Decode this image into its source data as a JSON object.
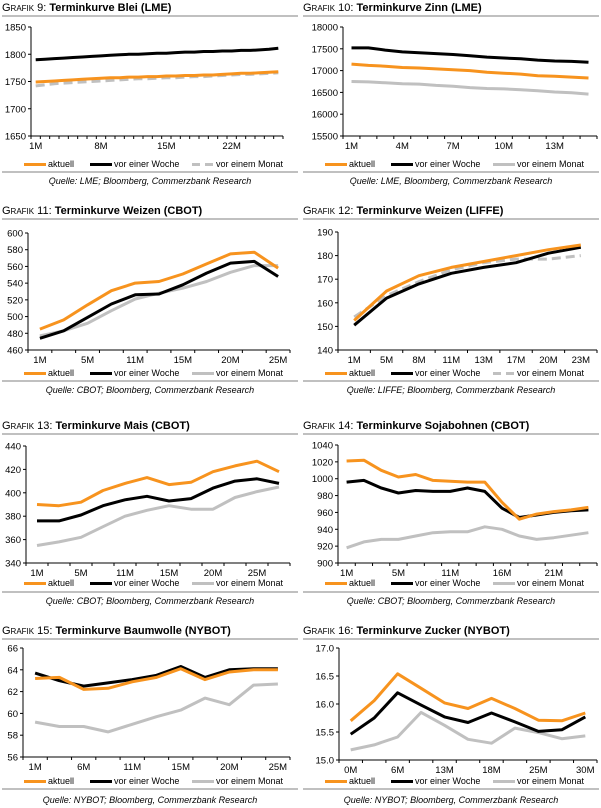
{
  "colors": {
    "aktuell": "#f7931e",
    "woche": "#000000",
    "monat": "#c0c0c0",
    "rule": "#c0c0c0"
  },
  "legend": {
    "aktuell": "aktuell",
    "woche": "vor einer Woche",
    "monat": "vor einem Monat"
  },
  "chart_data": [
    {
      "id": "g9",
      "type": "line",
      "prefix": "Grafik 9:",
      "title": "Terminkurve Blei (LME)",
      "source": "Quelle: LME; Bloomberg, Commerzbank Research",
      "ylim": [
        1650,
        1850
      ],
      "yticks": [
        "1650",
        "1700",
        "1750",
        "1800",
        "1850"
      ],
      "yticks_values": [
        1650,
        1700,
        1750,
        1800,
        1850
      ],
      "n_points": 27,
      "xtick_labels": [
        "1M",
        "8M",
        "15M",
        "22M"
      ],
      "xtick_index": [
        0,
        7,
        14,
        21
      ],
      "n_ticks": 27,
      "monat_dashed": true,
      "series": [
        {
          "key": "aktuell",
          "name": "aktuell",
          "values": [
            1749,
            1750,
            1751,
            1752,
            1753,
            1754,
            1755,
            1756,
            1757,
            1757,
            1758,
            1758,
            1759,
            1759,
            1760,
            1760,
            1761,
            1761,
            1762,
            1762,
            1763,
            1764,
            1765,
            1765,
            1766,
            1767,
            1768
          ]
        },
        {
          "key": "woche",
          "name": "vor einer Woche",
          "values": [
            1790,
            1791,
            1792,
            1793,
            1794,
            1795,
            1796,
            1797,
            1798,
            1799,
            1800,
            1800,
            1801,
            1802,
            1802,
            1803,
            1804,
            1804,
            1805,
            1805,
            1806,
            1806,
            1807,
            1807,
            1808,
            1809,
            1811
          ]
        },
        {
          "key": "monat",
          "name": "vor einem Monat",
          "values": [
            1742,
            1744,
            1746,
            1747,
            1748,
            1749,
            1750,
            1751,
            1752,
            1753,
            1754,
            1755,
            1755,
            1756,
            1757,
            1757,
            1758,
            1759,
            1759,
            1760,
            1761,
            1762,
            1763,
            1763,
            1764,
            1765,
            1766
          ]
        }
      ]
    },
    {
      "id": "g10",
      "type": "line",
      "prefix": "Grafik 10:",
      "title": "Terminkurve Zinn (LME)",
      "source": "Quelle: LME, Bloomberg, Commerzbank Research",
      "ylim": [
        15500,
        18000
      ],
      "yticks": [
        "15500",
        "16000",
        "16500",
        "17000",
        "17500",
        "18000"
      ],
      "yticks_values": [
        15500,
        16000,
        16500,
        17000,
        17500,
        18000
      ],
      "n_points": 15,
      "xtick_labels": [
        "1M",
        "4M",
        "7M",
        "10M",
        "13M"
      ],
      "xtick_index": [
        0,
        3,
        6,
        9,
        12
      ],
      "n_ticks": 15,
      "monat_dashed": false,
      "series": [
        {
          "key": "aktuell",
          "name": "aktuell",
          "values": [
            17150,
            17120,
            17100,
            17070,
            17060,
            17040,
            17020,
            17000,
            16960,
            16940,
            16920,
            16880,
            16870,
            16850,
            16830
          ]
        },
        {
          "key": "woche",
          "name": "vor einer Woche",
          "values": [
            17520,
            17520,
            17470,
            17430,
            17410,
            17390,
            17370,
            17340,
            17310,
            17290,
            17270,
            17240,
            17220,
            17210,
            17190
          ]
        },
        {
          "key": "monat",
          "name": "vor einem Monat",
          "values": [
            16750,
            16740,
            16720,
            16700,
            16690,
            16660,
            16640,
            16610,
            16590,
            16580,
            16560,
            16540,
            16510,
            16490,
            16460
          ]
        }
      ]
    },
    {
      "id": "g11",
      "type": "line",
      "prefix": "Grafik 11:",
      "title": "Terminkurve Weizen (CBOT)",
      "source": "Quelle: CBOT; Bloomberg, Commerzbank Research",
      "ylim": [
        460,
        600
      ],
      "yticks": [
        "460",
        "480",
        "500",
        "520",
        "540",
        "560",
        "580",
        "600"
      ],
      "yticks_values": [
        460,
        480,
        500,
        520,
        540,
        560,
        580,
        600
      ],
      "n_points": 11,
      "xtick_labels": [
        "1M",
        "5M",
        "11M",
        "15M",
        "20M",
        "25M"
      ],
      "xtick_index": [
        0,
        2,
        4,
        6,
        8,
        10
      ],
      "n_ticks": 11,
      "monat_dashed": false,
      "series": [
        {
          "key": "aktuell",
          "name": "aktuell",
          "values": [
            485,
            496,
            514,
            531,
            540,
            542,
            551,
            563,
            575,
            577,
            558
          ]
        },
        {
          "key": "woche",
          "name": "vor einer Woche",
          "values": [
            474,
            483,
            499,
            515,
            526,
            527,
            538,
            552,
            564,
            566,
            548
          ]
        },
        {
          "key": "monat",
          "name": "vor einem Monat",
          "values": [
            477,
            483,
            492,
            507,
            521,
            528,
            534,
            542,
            553,
            561,
            561
          ]
        }
      ]
    },
    {
      "id": "g12",
      "type": "line",
      "prefix": "Grafik 12:",
      "title": "Terminkurve Weizen (LIFFE)",
      "source": "Quelle: LIFFE; Bloomberg, Commerzbank Research",
      "ylim": [
        140,
        190
      ],
      "yticks": [
        "140",
        "150",
        "160",
        "170",
        "180",
        "190"
      ],
      "yticks_values": [
        140,
        150,
        160,
        170,
        180,
        190
      ],
      "n_points": 8,
      "xtick_labels": [
        "1M",
        "5M",
        "8M",
        "11M",
        "13M",
        "17M",
        "20M",
        "23M"
      ],
      "xtick_index": [
        0,
        1,
        2,
        3,
        4,
        5,
        6,
        7
      ],
      "n_ticks": 8,
      "monat_dashed": true,
      "series": [
        {
          "key": "aktuell",
          "name": "aktuell",
          "values": [
            152.5,
            165,
            171.5,
            175,
            177.5,
            180,
            182.5,
            184.5
          ]
        },
        {
          "key": "woche",
          "name": "vor einer Woche",
          "values": [
            150.5,
            162,
            168,
            172.5,
            175,
            177,
            181,
            183.5
          ]
        },
        {
          "key": "monat",
          "name": "vor einem Monat",
          "values": [
            154,
            163,
            169,
            174,
            177,
            178.5,
            178.5,
            180
          ]
        }
      ]
    },
    {
      "id": "g13",
      "type": "line",
      "prefix": "Grafik 13:",
      "title": "Terminkurve Mais (CBOT)",
      "source": "Quelle: CBOT; Bloomberg, Commerzbank Research",
      "ylim": [
        340,
        440
      ],
      "yticks": [
        "340",
        "360",
        "380",
        "400",
        "420",
        "440"
      ],
      "yticks_values": [
        340,
        360,
        380,
        400,
        420,
        440
      ],
      "n_points": 12,
      "xtick_labels": [
        "1M",
        "5M",
        "11M",
        "15M",
        "20M",
        "25M"
      ],
      "xtick_index": [
        0,
        2,
        4,
        6,
        8,
        10
      ],
      "n_ticks": 12,
      "monat_dashed": false,
      "series": [
        {
          "key": "aktuell",
          "name": "aktuell",
          "values": [
            390,
            389,
            392,
            402,
            408,
            413,
            407,
            409,
            418,
            423,
            427,
            418
          ]
        },
        {
          "key": "woche",
          "name": "vor einer Woche",
          "values": [
            376,
            376,
            381,
            389,
            394,
            397,
            393,
            395,
            404,
            410,
            412,
            408
          ]
        },
        {
          "key": "monat",
          "name": "vor einem Monat",
          "values": [
            355,
            358,
            362,
            371,
            380,
            385,
            389,
            386,
            386,
            396,
            401,
            405
          ]
        }
      ]
    },
    {
      "id": "g14",
      "type": "line",
      "prefix": "Grafik 14:",
      "title": "Terminkurve Sojabohnen (CBOT)",
      "source": "Quelle: CBOT; Bloomberg, Commerzbank Research",
      "ylim": [
        900,
        1040
      ],
      "yticks": [
        "900",
        "920",
        "940",
        "960",
        "980",
        "1000",
        "1020",
        "1040"
      ],
      "yticks_values": [
        900,
        920,
        940,
        960,
        980,
        1000,
        1020,
        1040
      ],
      "n_points": 15,
      "xtick_labels": [
        "1M",
        "5M",
        "11M",
        "16M",
        "21M"
      ],
      "xtick_index": [
        0,
        3,
        6,
        9,
        12
      ],
      "n_ticks": 15,
      "monat_dashed": false,
      "series": [
        {
          "key": "aktuell",
          "name": "aktuell",
          "values": [
            1021,
            1022,
            1010,
            1002,
            1005,
            998,
            997,
            996,
            996,
            972,
            952,
            958,
            961,
            963,
            966
          ]
        },
        {
          "key": "woche",
          "name": "vor einer Woche",
          "values": [
            996,
            998,
            989,
            983,
            986,
            985,
            985,
            989,
            985,
            965,
            954,
            957,
            960,
            962,
            963
          ]
        },
        {
          "key": "monat",
          "name": "vor einem Monat",
          "values": [
            918,
            925,
            928,
            928,
            932,
            936,
            937,
            937,
            943,
            940,
            932,
            928,
            930,
            933,
            936
          ]
        }
      ]
    },
    {
      "id": "g15",
      "type": "line",
      "prefix": "Grafik 15:",
      "title": "Terminkurve Baumwolle (NYBOT)",
      "source": "Quelle: NYBOT; Bloomberg, Commerzbank Research",
      "ylim": [
        56,
        66
      ],
      "yticks": [
        "56",
        "58",
        "60",
        "62",
        "64",
        "66"
      ],
      "yticks_values": [
        56,
        58,
        60,
        62,
        64,
        66
      ],
      "n_points": 11,
      "xtick_labels": [
        "1M",
        "6M",
        "11M",
        "15M",
        "20M",
        "25M"
      ],
      "xtick_index": [
        0,
        2,
        4,
        6,
        8,
        10
      ],
      "n_ticks": 11,
      "monat_dashed": false,
      "series": [
        {
          "key": "aktuell",
          "name": "aktuell",
          "values": [
            63.2,
            63.3,
            62.2,
            62.3,
            62.9,
            63.3,
            64.1,
            63.1,
            63.8,
            64.0,
            64.0
          ]
        },
        {
          "key": "woche",
          "name": "vor einer Woche",
          "values": [
            63.7,
            63.0,
            62.5,
            62.8,
            63.1,
            63.5,
            64.3,
            63.3,
            64.0,
            64.1,
            64.1
          ]
        },
        {
          "key": "monat",
          "name": "vor einem Monat",
          "values": [
            59.2,
            58.8,
            58.8,
            58.3,
            59.0,
            59.7,
            60.3,
            61.4,
            60.8,
            62.6,
            62.7
          ]
        }
      ]
    },
    {
      "id": "g16",
      "type": "line",
      "prefix": "Grafik 16:",
      "title": "Terminkurve Zucker (NYBOT)",
      "source": "Quelle: NYBOT; Bloomberg, Commerzbank Research",
      "ylim": [
        15.0,
        17.0
      ],
      "yticks": [
        "15.0",
        "15.5",
        "16.0",
        "16.5",
        "17.0"
      ],
      "yticks_values": [
        15.0,
        15.5,
        16.0,
        16.5,
        17.0
      ],
      "n_points": 11,
      "xtick_labels": [
        "0M",
        "6M",
        "13M",
        "18M",
        "25M",
        "30M"
      ],
      "xtick_index": [
        0,
        2,
        4,
        6,
        8,
        10
      ],
      "n_ticks": 11,
      "monat_dashed": false,
      "series": [
        {
          "key": "aktuell",
          "name": "aktuell",
          "values": [
            15.7,
            16.06,
            16.54,
            16.28,
            16.02,
            15.92,
            16.1,
            15.92,
            15.71,
            15.7,
            15.84
          ]
        },
        {
          "key": "woche",
          "name": "vor einer Woche",
          "values": [
            15.46,
            15.75,
            16.2,
            15.98,
            15.77,
            15.67,
            15.84,
            15.68,
            15.51,
            15.54,
            15.77
          ]
        },
        {
          "key": "monat",
          "name": "vor einem Monat",
          "values": [
            15.18,
            15.27,
            15.41,
            15.85,
            15.62,
            15.37,
            15.3,
            15.57,
            15.49,
            15.38,
            15.43
          ]
        }
      ]
    }
  ]
}
